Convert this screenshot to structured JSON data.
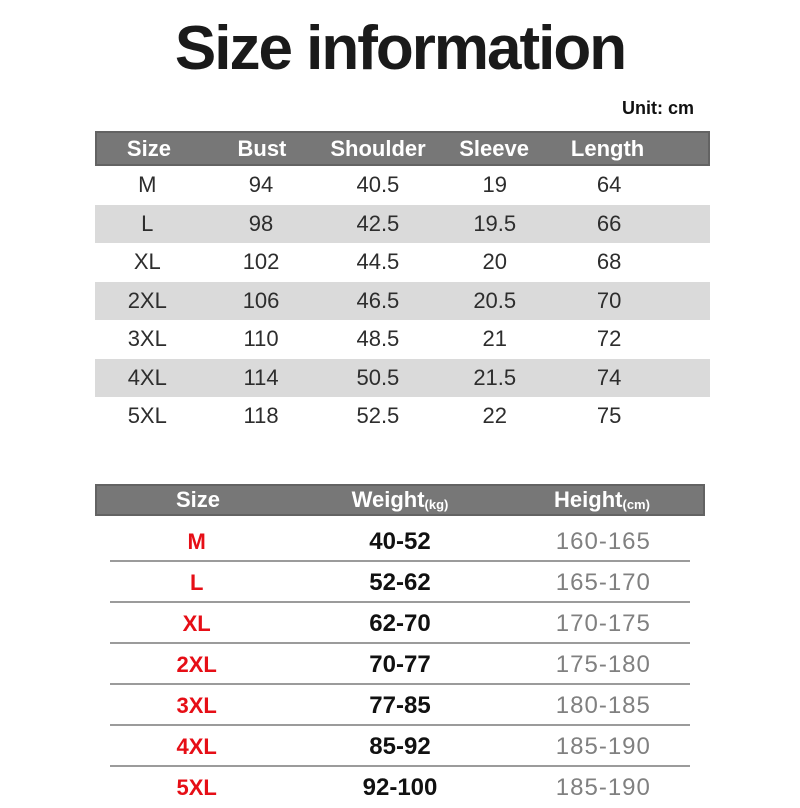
{
  "page": {
    "title": "Size information",
    "unit_note": "Unit: cm"
  },
  "colors": {
    "title_text": "#1a1a1a",
    "header_bg": "#777777",
    "header_border": "#636363",
    "header_text": "#ffffff",
    "stripe_bg": "#dadada",
    "body_text": "#2d2d2d",
    "accent_red": "#e60e16",
    "weight_text": "#111111",
    "height_text": "#808080",
    "divider": "#9b9b9b"
  },
  "measurements_table": {
    "columns": [
      "Size",
      "Bust",
      "Shoulder",
      "Sleeve",
      "Length"
    ],
    "rows": [
      [
        "M",
        "94",
        "40.5",
        "19",
        "64"
      ],
      [
        "L",
        "98",
        "42.5",
        "19.5",
        "66"
      ],
      [
        "XL",
        "102",
        "44.5",
        "20",
        "68"
      ],
      [
        "2XL",
        "106",
        "46.5",
        "20.5",
        "70"
      ],
      [
        "3XL",
        "110",
        "48.5",
        "21",
        "72"
      ],
      [
        "4XL",
        "114",
        "50.5",
        "21.5",
        "74"
      ],
      [
        "5XL",
        "118",
        "52.5",
        "22",
        "75"
      ]
    ]
  },
  "fit_table": {
    "columns": [
      {
        "label": "Size",
        "sub": ""
      },
      {
        "label": "Weight",
        "sub": "(kg)"
      },
      {
        "label": "Height",
        "sub": "(cm)"
      }
    ],
    "rows": [
      {
        "size": "M",
        "weight": "40-52",
        "height": "160-165"
      },
      {
        "size": "L",
        "weight": "52-62",
        "height": "165-170"
      },
      {
        "size": "XL",
        "weight": "62-70",
        "height": "170-175"
      },
      {
        "size": "2XL",
        "weight": "70-77",
        "height": "175-180"
      },
      {
        "size": "3XL",
        "weight": "77-85",
        "height": "180-185"
      },
      {
        "size": "4XL",
        "weight": "85-92",
        "height": "185-190"
      },
      {
        "size": "5XL",
        "weight": "92-100",
        "height": "185-190"
      }
    ]
  }
}
